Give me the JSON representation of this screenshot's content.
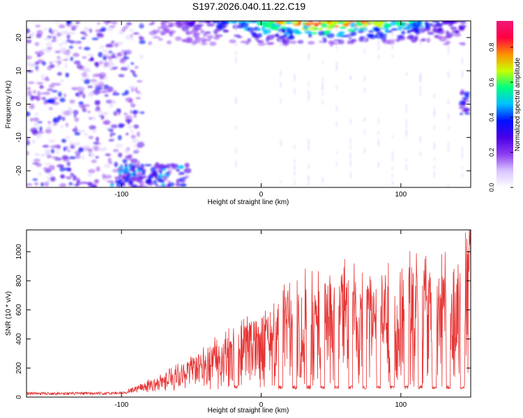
{
  "title": "S197.2026.040.11.22.C19",
  "colors": {
    "snr_line": "#e63232",
    "specgram_palette": [
      "#ffffff",
      "#d8c4ff",
      "#8c3cf0",
      "#4a00e8",
      "#0010ff",
      "#00c0ff",
      "#00ff80",
      "#c8ff00",
      "#ff9000",
      "#ff0040",
      "#f0187a"
    ]
  },
  "chart_data": [
    {
      "type": "heatmap",
      "title": "S197.2026.040.11.22.C19",
      "xlabel": "Height of straight line (km)",
      "ylabel": "Frequency (Hz)",
      "xlim": [
        -168,
        150
      ],
      "ylim": [
        -25,
        25
      ],
      "xticks": [
        -100,
        0,
        100
      ],
      "xtick_labels": [
        "-100",
        "0",
        "100"
      ],
      "yticks": [
        -20,
        -10,
        0,
        10,
        20
      ],
      "ytick_labels": [
        "-20",
        "-10",
        "0",
        "10",
        "20"
      ],
      "colorbar": {
        "label": "Normalized spectral amplitude",
        "range": [
          0.0,
          0.95
        ],
        "ticks": [
          0.0,
          0.2,
          0.4,
          0.6,
          0.8
        ],
        "tick_labels": [
          "0.0",
          "0.2",
          "0.4",
          "0.6",
          "0.8"
        ]
      },
      "features": [
        {
          "description": "scattered noise patches",
          "x_range": [
            -168,
            -85
          ],
          "y_range": [
            -25,
            25
          ],
          "amplitude": 0.12
        },
        {
          "description": "high-frequency band",
          "x_range": [
            -82,
            145
          ],
          "y_range": [
            18,
            25
          ],
          "amplitude": 0.75
        },
        {
          "description": "low-frequency cluster",
          "x_range": [
            -107,
            -52
          ],
          "y_range": [
            -25,
            -18
          ],
          "amplitude": 0.35
        },
        {
          "description": "isolated spot",
          "x_range": [
            143,
            150
          ],
          "y_range": [
            -4,
            4
          ],
          "amplitude": 0.3
        }
      ]
    },
    {
      "type": "line",
      "xlabel": "Height of straight line (km)",
      "ylabel": "SNR (10 * v/v)",
      "xlim": [
        -168,
        150
      ],
      "ylim": [
        0,
        1150
      ],
      "xticks": [
        -100,
        0,
        100
      ],
      "xtick_labels": [
        "-100",
        "0",
        "100"
      ],
      "yticks": [
        0,
        200,
        400,
        600,
        800,
        1000
      ],
      "ytick_labels": [
        "0",
        "200",
        "400",
        "600",
        "800",
        "1000"
      ],
      "grid": false,
      "series": [
        {
          "x": [
            -168,
            -150,
            -130,
            -110,
            -100,
            -90,
            -80,
            -70,
            -60,
            -50,
            -40,
            -30,
            -20,
            -10,
            0,
            10,
            20,
            30,
            40,
            50,
            60,
            70,
            80,
            90,
            100,
            110,
            120,
            130,
            140,
            150
          ],
          "envelope_y": [
            25,
            30,
            40,
            35,
            45,
            70,
            110,
            150,
            200,
            260,
            330,
            380,
            450,
            500,
            560,
            640,
            700,
            760,
            820,
            840,
            860,
            780,
            760,
            800,
            880,
            900,
            860,
            880,
            960,
            1100
          ],
          "baseline_y": [
            25,
            25,
            25,
            25,
            30,
            30,
            35,
            40,
            40,
            45,
            50,
            55,
            60,
            60,
            55,
            55,
            55,
            55,
            55,
            55,
            55,
            55,
            55,
            55,
            55,
            55,
            55,
            55,
            55,
            55
          ],
          "dips_x": [
            -18,
            14,
            24,
            34,
            44,
            54,
            64,
            74,
            84,
            94,
            104,
            114,
            124,
            134,
            144
          ]
        }
      ]
    }
  ]
}
